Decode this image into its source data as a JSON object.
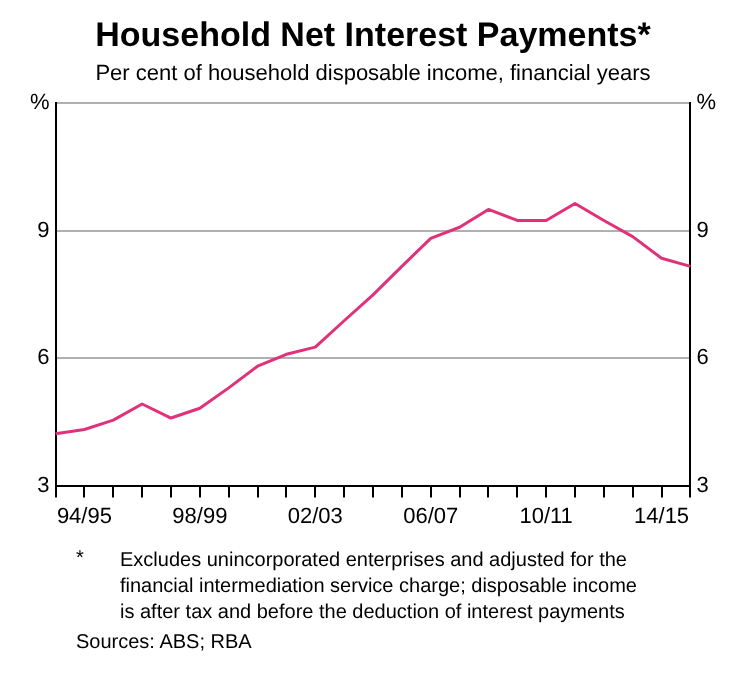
{
  "chart_data": {
    "type": "line",
    "title": "Household Net Interest Payments*",
    "subtitle": "Per cent of household disposable income, financial years",
    "categories": [
      null,
      "94/95",
      null,
      null,
      null,
      "98/99",
      null,
      null,
      null,
      "02/03",
      null,
      null,
      null,
      "06/07",
      null,
      null,
      null,
      "10/11",
      null,
      null,
      null,
      "14/15",
      null
    ],
    "series": [
      {
        "color": "#e0327a",
        "values": [
          4.22,
          4.32,
          4.54,
          4.92,
          4.59,
          4.82,
          5.3,
          5.81,
          6.09,
          6.26,
          6.88,
          7.49,
          8.16,
          8.82,
          9.08,
          9.5,
          9.24,
          9.24,
          9.64,
          9.24,
          8.86,
          8.35,
          8.16
        ]
      }
    ],
    "ylim": [
      3,
      12
    ],
    "yticks": [
      3,
      6,
      9,
      {
        "value": 12,
        "label": "%"
      }
    ],
    "y2lim": [
      3,
      12
    ],
    "y2ticks": [
      3,
      6,
      9,
      {
        "value": 12,
        "label": "%"
      }
    ],
    "grid": "y",
    "legend": false,
    "marker": "none",
    "line_style": "solid",
    "annotations": [
      "*",
      "Excludes unincorporated enterprises and adjusted for the financial intermediation service charge; disposable income is after tax and before the deduction of interest payments",
      "Sources: ABS; RBA"
    ]
  }
}
